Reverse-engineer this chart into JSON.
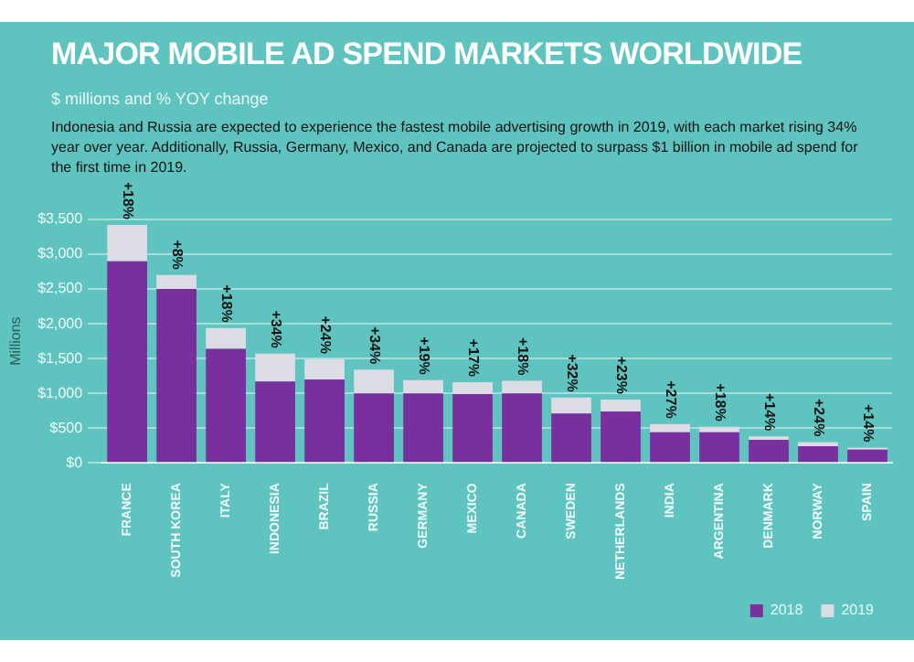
{
  "chart_data": {
    "type": "bar",
    "title": "MAJOR MOBILE AD SPEND MARKETS WORLDWIDE",
    "subtitle": "$ millions and % YOY change",
    "ylabel": "Millions",
    "categories": [
      "FRANCE",
      "SOUTH KOREA",
      "ITALY",
      "INDONESIA",
      "BRAZIL",
      "RUSSIA",
      "GERMANY",
      "MEXICO",
      "CANADA",
      "SWEDEN",
      "NETHERLANDS",
      "INDIA",
      "ARGENTINA",
      "DENMARK",
      "NORWAY",
      "SPAIN"
    ],
    "stacked": true,
    "series": [
      {
        "name": "2018",
        "color": "#7a2f9e",
        "values": [
          2900,
          2500,
          1640,
          1170,
          1200,
          1000,
          1000,
          990,
          1000,
          710,
          740,
          440,
          440,
          330,
          240,
          190
        ]
      },
      {
        "name": "2019",
        "color": "#dcdce4",
        "values": [
          520,
          200,
          300,
          400,
          290,
          340,
          190,
          170,
          180,
          230,
          170,
          120,
          80,
          50,
          60,
          30
        ]
      }
    ],
    "ylim": [
      0,
      3500
    ],
    "yticks": [
      {
        "value": 0,
        "label": "$0"
      },
      {
        "value": 500,
        "label": "$500"
      },
      {
        "value": 1000,
        "label": "$1,000"
      },
      {
        "value": 1500,
        "label": "$1,500"
      },
      {
        "value": 2000,
        "label": "$2,000"
      },
      {
        "value": 2500,
        "label": "$2,500"
      },
      {
        "value": 3000,
        "label": "$3,000"
      },
      {
        "value": 3500,
        "label": "$3,500"
      }
    ],
    "grid": "y",
    "legend": "bottom right",
    "annotations": [
      "Indonesia and Russia are expected to experience the fastest mobile advertising growth in 2019, with each market rising 34% year over year. Additionally, Russia, Germany, Mexico, and Canada are projected to surpass $1 billion in mobile ad spend for the first time in 2019.",
      {
        "text": "+18%",
        "x": "FRANCE",
        "y": 3420
      },
      {
        "text": "+8%",
        "x": "SOUTH KOREA",
        "y": 2700
      },
      {
        "text": "+18%",
        "x": "ITALY",
        "y": 1940
      },
      {
        "text": "+34%",
        "x": "INDONESIA",
        "y": 1570
      },
      {
        "text": "+24%",
        "x": "BRAZIL",
        "y": 1490
      },
      {
        "text": "+34%",
        "x": "RUSSIA",
        "y": 1340
      },
      {
        "text": "+19%",
        "x": "GERMANY",
        "y": 1190
      },
      {
        "text": "+17%",
        "x": "MEXICO",
        "y": 1160
      },
      {
        "text": "+18%",
        "x": "CANADA",
        "y": 1180
      },
      {
        "text": "+32%",
        "x": "SWEDEN",
        "y": 940
      },
      {
        "text": "+23%",
        "x": "NETHERLANDS",
        "y": 910
      },
      {
        "text": "+27%",
        "x": "INDIA",
        "y": 560
      },
      {
        "text": "+18%",
        "x": "ARGENTINA",
        "y": 520
      },
      {
        "text": "+14%",
        "x": "DENMARK",
        "y": 380
      },
      {
        "text": "+24%",
        "x": "NORWAY",
        "y": 300
      },
      {
        "text": "+14%",
        "x": "SPAIN",
        "y": 220
      }
    ]
  }
}
